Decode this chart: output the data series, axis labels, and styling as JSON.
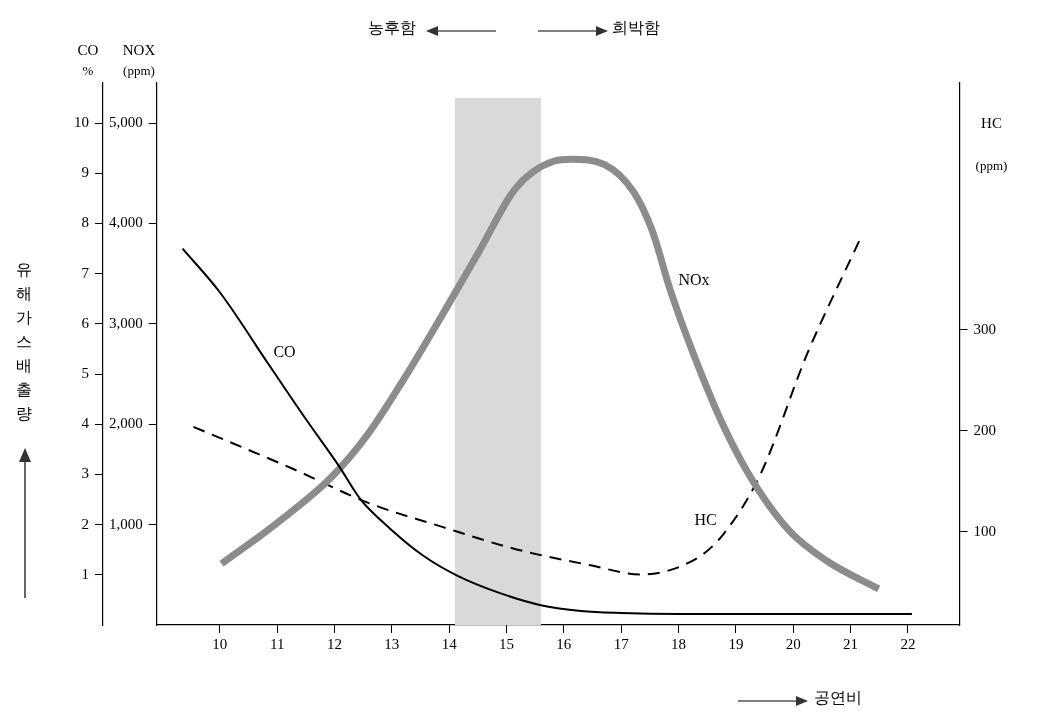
{
  "chart_data": {
    "type": "line",
    "xlabel": "공연비",
    "ylabel": "CO %",
    "y2label": "NOX (ppm)",
    "y3label": "HC (ppm)",
    "annotations": [
      "유해가스배출량",
      "농후함",
      "희박함"
    ],
    "xlim": [
      8.9,
      22.9
    ],
    "xticks": [
      10,
      11,
      12,
      13,
      14,
      15,
      16,
      17,
      18,
      19,
      20,
      21,
      22
    ],
    "ylim": [
      0,
      10.8
    ],
    "yticks": [
      1,
      2,
      3,
      4,
      5,
      6,
      7,
      8,
      9,
      10
    ],
    "y2lim": [
      0,
      5400
    ],
    "y2ticks": [
      {
        "value": 1000,
        "label": "1,000"
      },
      {
        "value": 2000,
        "label": "2,000"
      },
      {
        "value": 3000,
        "label": "3,000"
      },
      {
        "value": 4000,
        "label": "4,000"
      },
      {
        "value": 5000,
        "label": "5,000"
      }
    ],
    "y3lim": [
      8,
      544
    ],
    "y3ticks": [
      100,
      200,
      300
    ],
    "bands": [
      {
        "axis": "x",
        "from": 14.1,
        "to": 15.6,
        "color": "#d9d9d9"
      }
    ],
    "grid": false,
    "legend": false,
    "marker": "none",
    "series": [
      {
        "name": "CO",
        "color": "#000000",
        "line_style": "solid",
        "x": [
          9.35,
          10,
          10.83,
          11.49,
          12.07,
          12.45,
          12.97,
          13.55,
          14.13,
          14.85,
          15.62,
          16.3,
          17,
          18,
          20,
          22.07
        ],
        "values": [
          7.5,
          6.63,
          5.23,
          4.12,
          3.18,
          2.51,
          1.92,
          1.38,
          0.99,
          0.65,
          0.39,
          0.28,
          0.24,
          0.22,
          0.22,
          0.22
        ]
      },
      {
        "name": "NOx",
        "color": "#8c8c8c",
        "axis": "y2",
        "line_style": "solid",
        "x": [
          10.03,
          10.96,
          11.94,
          12.58,
          13.22,
          13.88,
          14.52,
          15.16,
          15.82,
          16.14,
          16.7,
          17.21,
          17.54,
          17.86,
          18.24,
          18.77,
          19.29,
          19.93,
          20.58,
          21.49
        ],
        "values": [
          610,
          1000,
          1470,
          1900,
          2460,
          3090,
          3720,
          4350,
          4620,
          4640,
          4590,
          4320,
          3930,
          3330,
          2730,
          2000,
          1440,
          940,
          640,
          360
        ]
      },
      {
        "name": "HC",
        "color": "#000000",
        "axis": "y3",
        "line_style": "dashed",
        "x": [
          9.54,
          11.29,
          12.58,
          13.88,
          15.16,
          16.47,
          17.34,
          18.32,
          18.77,
          19.42,
          20.25,
          21.16
        ],
        "values": [
          204,
          162,
          129,
          105,
          83,
          67,
          58,
          74,
          97,
          156,
          277,
          389
        ]
      }
    ]
  }
}
